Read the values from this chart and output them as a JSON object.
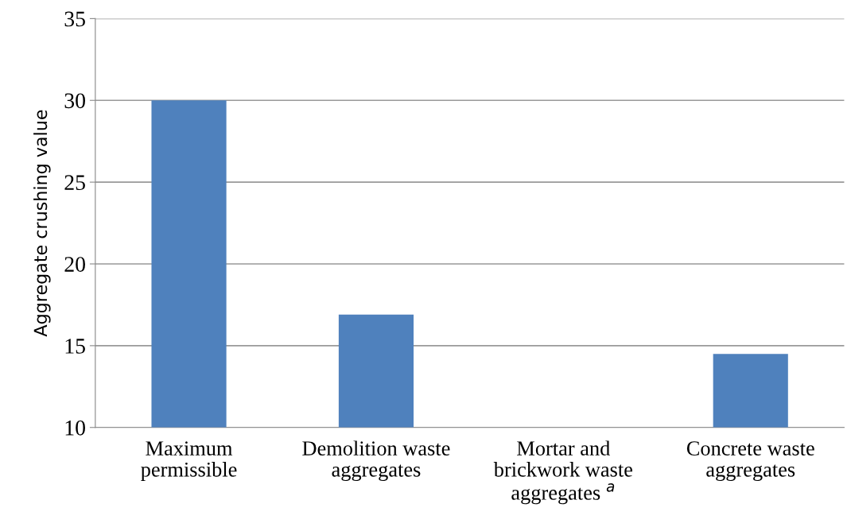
{
  "chart_data": {
    "type": "bar",
    "ylabel": "Aggregate crushing value",
    "categories": [
      "Maximum\npermissible",
      "Demolition waste\naggregates",
      "Mortar and\nbrickwork waste\naggregates $^{a}$",
      "Concrete waste\naggregates"
    ],
    "values": [
      30,
      16.9,
      null,
      14.5
    ],
    "color": "#4f81bd",
    "ylim": [
      10,
      35
    ],
    "yticks": [
      10,
      15,
      20,
      25,
      30,
      35
    ],
    "grid": "y"
  }
}
